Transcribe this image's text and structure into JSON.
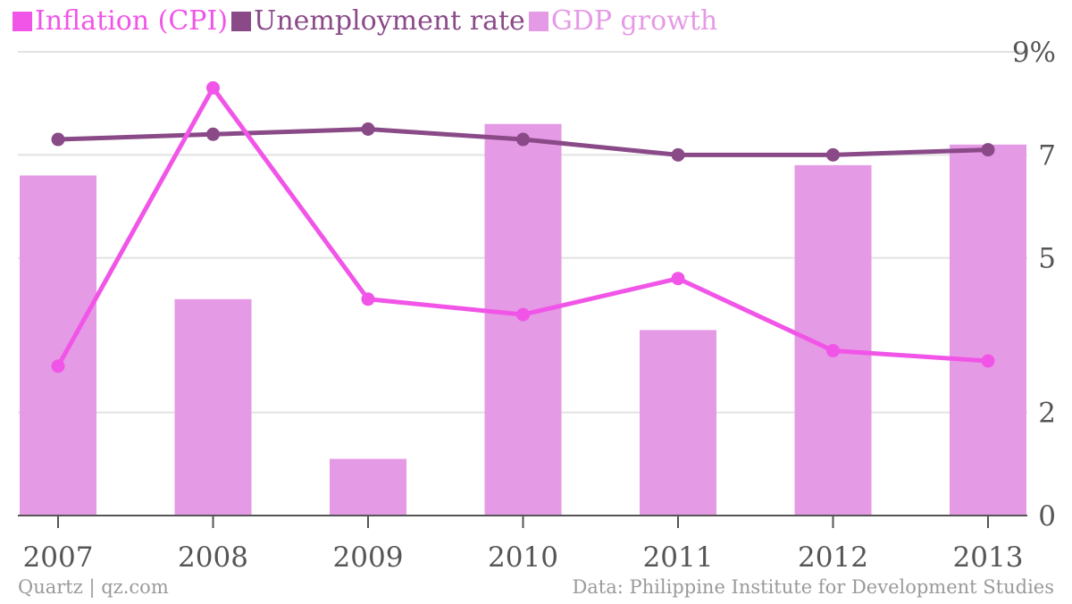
{
  "chart_data": {
    "type": "bar",
    "categories": [
      "2007",
      "2008",
      "2009",
      "2010",
      "2011",
      "2012",
      "2013"
    ],
    "series": [
      {
        "name": "Inflation (CPI)",
        "kind": "line",
        "color": "#f155e8",
        "values": [
          2.9,
          8.3,
          4.2,
          3.9,
          4.6,
          3.2,
          3.0
        ]
      },
      {
        "name": "Unemployment rate",
        "kind": "line",
        "color": "#8a4a88",
        "values": [
          7.3,
          7.4,
          7.5,
          7.3,
          7.0,
          7.0,
          7.1
        ]
      },
      {
        "name": "GDP growth",
        "kind": "bar",
        "color": "#e59ae5",
        "values": [
          6.6,
          4.2,
          1.1,
          7.6,
          3.6,
          6.8,
          7.2
        ]
      }
    ],
    "y_ticks": [
      "0",
      "2",
      "5",
      "7",
      "9%"
    ],
    "ylim": [
      0,
      9
    ],
    "y_axis_side": "right",
    "grid": true,
    "legend_position": "top-left"
  },
  "footer": {
    "source_left": "Quartz | qz.com",
    "source_right": "Data: Philippine Institute for Development Studies"
  }
}
